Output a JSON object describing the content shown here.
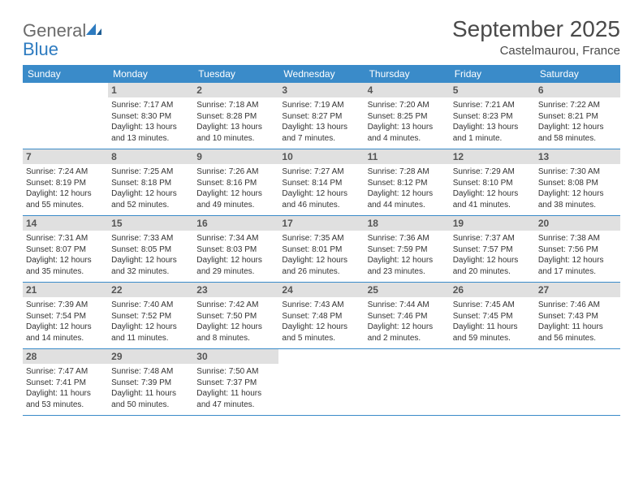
{
  "brand": {
    "name_part1": "General",
    "name_part2": "Blue"
  },
  "title": "September 2025",
  "location": "Castelmaurou, France",
  "colors": {
    "header_bg": "#3a8bc9",
    "header_text": "#ffffff",
    "daynum_bg": "#e0e0e0",
    "daynum_text": "#555555",
    "body_text": "#333333",
    "row_border": "#3a8bc9",
    "title_text": "#4a4a4a",
    "logo_gray": "#6b6b6b",
    "logo_blue": "#2d7bc0"
  },
  "dow": [
    "Sunday",
    "Monday",
    "Tuesday",
    "Wednesday",
    "Thursday",
    "Friday",
    "Saturday"
  ],
  "weeks": [
    [
      null,
      {
        "n": "1",
        "sr": "Sunrise: 7:17 AM",
        "ss": "Sunset: 8:30 PM",
        "d1": "Daylight: 13 hours",
        "d2": "and 13 minutes."
      },
      {
        "n": "2",
        "sr": "Sunrise: 7:18 AM",
        "ss": "Sunset: 8:28 PM",
        "d1": "Daylight: 13 hours",
        "d2": "and 10 minutes."
      },
      {
        "n": "3",
        "sr": "Sunrise: 7:19 AM",
        "ss": "Sunset: 8:27 PM",
        "d1": "Daylight: 13 hours",
        "d2": "and 7 minutes."
      },
      {
        "n": "4",
        "sr": "Sunrise: 7:20 AM",
        "ss": "Sunset: 8:25 PM",
        "d1": "Daylight: 13 hours",
        "d2": "and 4 minutes."
      },
      {
        "n": "5",
        "sr": "Sunrise: 7:21 AM",
        "ss": "Sunset: 8:23 PM",
        "d1": "Daylight: 13 hours",
        "d2": "and 1 minute."
      },
      {
        "n": "6",
        "sr": "Sunrise: 7:22 AM",
        "ss": "Sunset: 8:21 PM",
        "d1": "Daylight: 12 hours",
        "d2": "and 58 minutes."
      }
    ],
    [
      {
        "n": "7",
        "sr": "Sunrise: 7:24 AM",
        "ss": "Sunset: 8:19 PM",
        "d1": "Daylight: 12 hours",
        "d2": "and 55 minutes."
      },
      {
        "n": "8",
        "sr": "Sunrise: 7:25 AM",
        "ss": "Sunset: 8:18 PM",
        "d1": "Daylight: 12 hours",
        "d2": "and 52 minutes."
      },
      {
        "n": "9",
        "sr": "Sunrise: 7:26 AM",
        "ss": "Sunset: 8:16 PM",
        "d1": "Daylight: 12 hours",
        "d2": "and 49 minutes."
      },
      {
        "n": "10",
        "sr": "Sunrise: 7:27 AM",
        "ss": "Sunset: 8:14 PM",
        "d1": "Daylight: 12 hours",
        "d2": "and 46 minutes."
      },
      {
        "n": "11",
        "sr": "Sunrise: 7:28 AM",
        "ss": "Sunset: 8:12 PM",
        "d1": "Daylight: 12 hours",
        "d2": "and 44 minutes."
      },
      {
        "n": "12",
        "sr": "Sunrise: 7:29 AM",
        "ss": "Sunset: 8:10 PM",
        "d1": "Daylight: 12 hours",
        "d2": "and 41 minutes."
      },
      {
        "n": "13",
        "sr": "Sunrise: 7:30 AM",
        "ss": "Sunset: 8:08 PM",
        "d1": "Daylight: 12 hours",
        "d2": "and 38 minutes."
      }
    ],
    [
      {
        "n": "14",
        "sr": "Sunrise: 7:31 AM",
        "ss": "Sunset: 8:07 PM",
        "d1": "Daylight: 12 hours",
        "d2": "and 35 minutes."
      },
      {
        "n": "15",
        "sr": "Sunrise: 7:33 AM",
        "ss": "Sunset: 8:05 PM",
        "d1": "Daylight: 12 hours",
        "d2": "and 32 minutes."
      },
      {
        "n": "16",
        "sr": "Sunrise: 7:34 AM",
        "ss": "Sunset: 8:03 PM",
        "d1": "Daylight: 12 hours",
        "d2": "and 29 minutes."
      },
      {
        "n": "17",
        "sr": "Sunrise: 7:35 AM",
        "ss": "Sunset: 8:01 PM",
        "d1": "Daylight: 12 hours",
        "d2": "and 26 minutes."
      },
      {
        "n": "18",
        "sr": "Sunrise: 7:36 AM",
        "ss": "Sunset: 7:59 PM",
        "d1": "Daylight: 12 hours",
        "d2": "and 23 minutes."
      },
      {
        "n": "19",
        "sr": "Sunrise: 7:37 AM",
        "ss": "Sunset: 7:57 PM",
        "d1": "Daylight: 12 hours",
        "d2": "and 20 minutes."
      },
      {
        "n": "20",
        "sr": "Sunrise: 7:38 AM",
        "ss": "Sunset: 7:56 PM",
        "d1": "Daylight: 12 hours",
        "d2": "and 17 minutes."
      }
    ],
    [
      {
        "n": "21",
        "sr": "Sunrise: 7:39 AM",
        "ss": "Sunset: 7:54 PM",
        "d1": "Daylight: 12 hours",
        "d2": "and 14 minutes."
      },
      {
        "n": "22",
        "sr": "Sunrise: 7:40 AM",
        "ss": "Sunset: 7:52 PM",
        "d1": "Daylight: 12 hours",
        "d2": "and 11 minutes."
      },
      {
        "n": "23",
        "sr": "Sunrise: 7:42 AM",
        "ss": "Sunset: 7:50 PM",
        "d1": "Daylight: 12 hours",
        "d2": "and 8 minutes."
      },
      {
        "n": "24",
        "sr": "Sunrise: 7:43 AM",
        "ss": "Sunset: 7:48 PM",
        "d1": "Daylight: 12 hours",
        "d2": "and 5 minutes."
      },
      {
        "n": "25",
        "sr": "Sunrise: 7:44 AM",
        "ss": "Sunset: 7:46 PM",
        "d1": "Daylight: 12 hours",
        "d2": "and 2 minutes."
      },
      {
        "n": "26",
        "sr": "Sunrise: 7:45 AM",
        "ss": "Sunset: 7:45 PM",
        "d1": "Daylight: 11 hours",
        "d2": "and 59 minutes."
      },
      {
        "n": "27",
        "sr": "Sunrise: 7:46 AM",
        "ss": "Sunset: 7:43 PM",
        "d1": "Daylight: 11 hours",
        "d2": "and 56 minutes."
      }
    ],
    [
      {
        "n": "28",
        "sr": "Sunrise: 7:47 AM",
        "ss": "Sunset: 7:41 PM",
        "d1": "Daylight: 11 hours",
        "d2": "and 53 minutes."
      },
      {
        "n": "29",
        "sr": "Sunrise: 7:48 AM",
        "ss": "Sunset: 7:39 PM",
        "d1": "Daylight: 11 hours",
        "d2": "and 50 minutes."
      },
      {
        "n": "30",
        "sr": "Sunrise: 7:50 AM",
        "ss": "Sunset: 7:37 PM",
        "d1": "Daylight: 11 hours",
        "d2": "and 47 minutes."
      },
      null,
      null,
      null,
      null
    ]
  ]
}
